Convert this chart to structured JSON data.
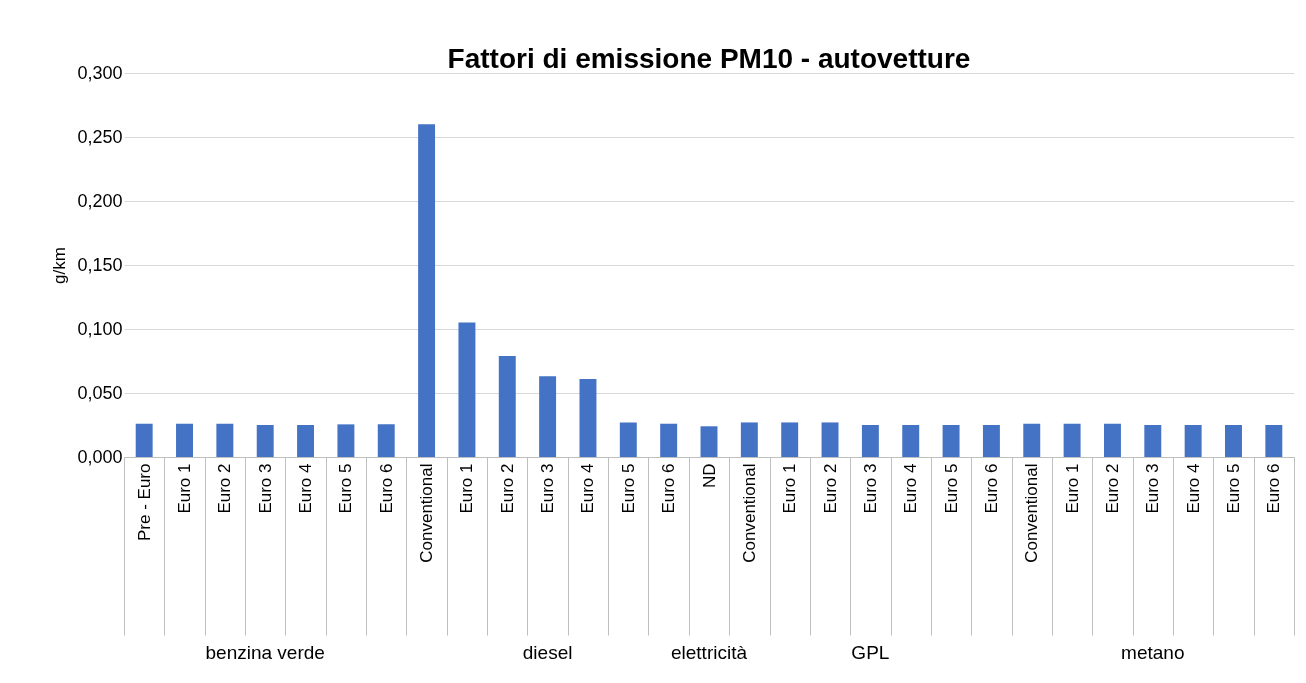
{
  "chart_data": {
    "type": "bar",
    "title": "Fattori di emissione PM10 - autovetture",
    "ylabel": "g/km",
    "categories": [
      "Pre - Euro",
      "Euro 1",
      "Euro 2",
      "Euro 3",
      "Euro 4",
      "Euro 5",
      "Euro 6",
      "Conventional",
      "Euro 1",
      "Euro 2",
      "Euro 3",
      "Euro 4",
      "Euro 5",
      "Euro 6",
      "ND",
      "Conventional",
      "Euro 1",
      "Euro 2",
      "Euro 3",
      "Euro 4",
      "Euro 5",
      "Euro 6",
      "Conventional",
      "Euro 1",
      "Euro 2",
      "Euro 3",
      "Euro 4",
      "Euro 5",
      "Euro 6"
    ],
    "values": [
      0.026,
      0.026,
      0.026,
      0.025,
      0.025,
      0.0255,
      0.0255,
      0.26,
      0.105,
      0.079,
      0.063,
      0.061,
      0.027,
      0.026,
      0.024,
      0.027,
      0.027,
      0.027,
      0.025,
      0.025,
      0.025,
      0.025,
      0.026,
      0.026,
      0.026,
      0.025,
      0.025,
      0.025,
      0.025
    ],
    "color": "#4472c4",
    "ylim": [
      0,
      0.3
    ],
    "yticks": [
      {
        "value": 0,
        "label": "0,000"
      },
      {
        "value": 0.05,
        "label": "0,050"
      },
      {
        "value": 0.1,
        "label": "0,100"
      },
      {
        "value": 0.15,
        "label": "0,150"
      },
      {
        "value": 0.2,
        "label": "0,200"
      },
      {
        "value": 0.25,
        "label": "0,250"
      },
      {
        "value": 0.3,
        "label": "0,300"
      }
    ],
    "grid": "y",
    "annotations": [
      "benzina verde",
      "diesel",
      "elettricità",
      "GPL",
      "metano"
    ]
  }
}
